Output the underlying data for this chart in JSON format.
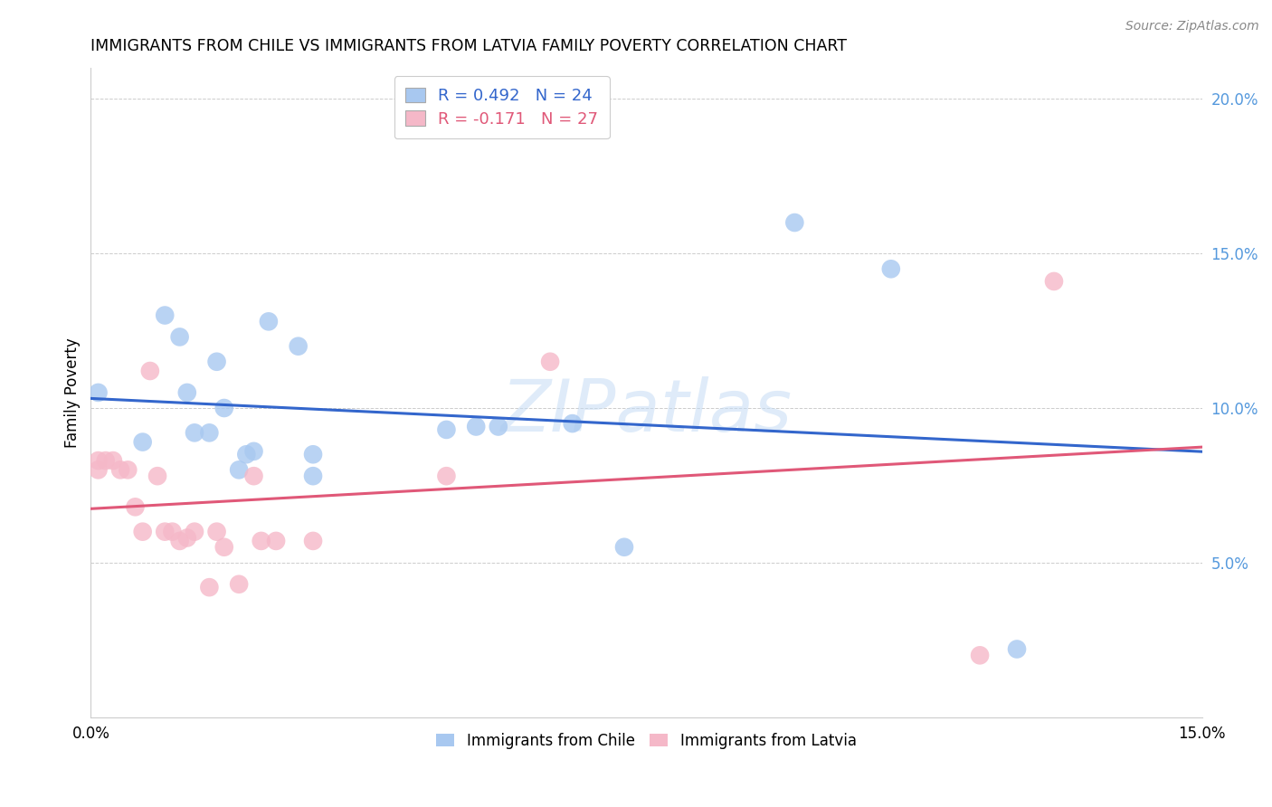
{
  "title": "IMMIGRANTS FROM CHILE VS IMMIGRANTS FROM LATVIA FAMILY POVERTY CORRELATION CHART",
  "source": "Source: ZipAtlas.com",
  "ylabel": "Family Poverty",
  "xlim": [
    0.0,
    0.15
  ],
  "ylim": [
    0.0,
    0.21
  ],
  "yticks": [
    0.05,
    0.1,
    0.15,
    0.2
  ],
  "ytick_labels": [
    "5.0%",
    "10.0%",
    "15.0%",
    "20.0%"
  ],
  "chile_color": "#A8C8F0",
  "latvia_color": "#F5B8C8",
  "chile_line_color": "#3366CC",
  "latvia_line_color": "#E05878",
  "tick_color": "#5599DD",
  "R_chile": "0.492",
  "N_chile": "24",
  "R_latvia": "-0.171",
  "N_latvia": "27",
  "chile_x": [
    0.001,
    0.007,
    0.01,
    0.012,
    0.013,
    0.014,
    0.016,
    0.017,
    0.018,
    0.02,
    0.021,
    0.022,
    0.024,
    0.028,
    0.03,
    0.03,
    0.048,
    0.052,
    0.055,
    0.065,
    0.072,
    0.095,
    0.108,
    0.125
  ],
  "chile_y": [
    0.105,
    0.089,
    0.13,
    0.123,
    0.105,
    0.092,
    0.092,
    0.115,
    0.1,
    0.08,
    0.085,
    0.086,
    0.128,
    0.12,
    0.085,
    0.078,
    0.093,
    0.094,
    0.094,
    0.095,
    0.055,
    0.16,
    0.145,
    0.022
  ],
  "latvia_x": [
    0.001,
    0.001,
    0.002,
    0.003,
    0.004,
    0.005,
    0.006,
    0.007,
    0.008,
    0.009,
    0.01,
    0.011,
    0.012,
    0.013,
    0.014,
    0.016,
    0.017,
    0.018,
    0.02,
    0.022,
    0.023,
    0.025,
    0.03,
    0.048,
    0.062,
    0.12,
    0.13
  ],
  "latvia_y": [
    0.083,
    0.08,
    0.083,
    0.083,
    0.08,
    0.08,
    0.068,
    0.06,
    0.112,
    0.078,
    0.06,
    0.06,
    0.057,
    0.058,
    0.06,
    0.042,
    0.06,
    0.055,
    0.043,
    0.078,
    0.057,
    0.057,
    0.057,
    0.078,
    0.115,
    0.02,
    0.141
  ],
  "watermark_text": "ZIPatlas",
  "background_color": "#FFFFFF",
  "grid_color": "#CCCCCC"
}
